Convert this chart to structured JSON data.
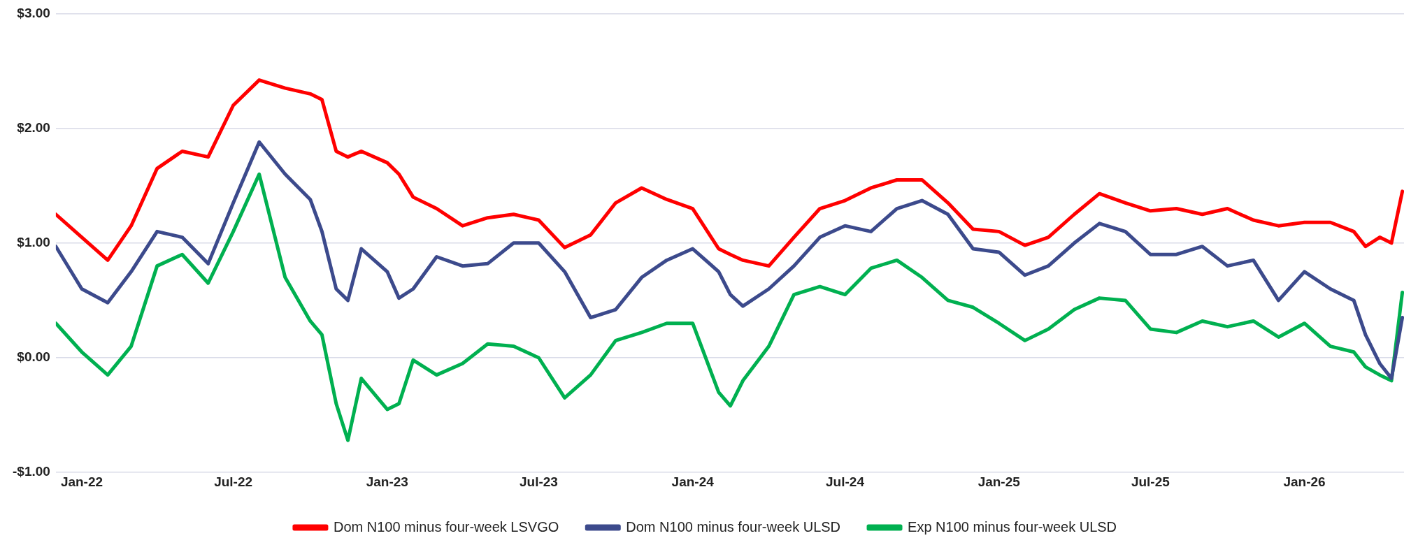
{
  "chart_data": {
    "type": "line",
    "x": [
      "2021-12-01",
      "2022-01-01",
      "2022-02-01",
      "2022-03-01",
      "2022-04-01",
      "2022-05-01",
      "2022-06-01",
      "2022-07-01",
      "2022-08-01",
      "2022-09-01",
      "2022-10-01",
      "2022-10-15",
      "2022-11-01",
      "2022-11-15",
      "2022-12-01",
      "2023-01-01",
      "2023-01-15",
      "2023-02-01",
      "2023-03-01",
      "2023-04-01",
      "2023-05-01",
      "2023-06-01",
      "2023-07-01",
      "2023-08-01",
      "2023-09-01",
      "2023-10-01",
      "2023-11-01",
      "2023-12-01",
      "2024-01-01",
      "2024-02-01",
      "2024-02-15",
      "2024-03-01",
      "2024-04-01",
      "2024-05-01",
      "2024-06-01",
      "2024-07-01",
      "2024-08-01",
      "2024-09-01",
      "2024-10-01",
      "2024-11-01",
      "2024-12-01",
      "2025-01-01",
      "2025-02-01",
      "2025-03-01",
      "2025-04-01",
      "2025-05-01",
      "2025-06-01",
      "2025-07-01",
      "2025-08-01",
      "2025-09-01",
      "2025-10-01",
      "2025-11-01",
      "2025-12-01",
      "2026-01-01",
      "2026-02-01",
      "2026-03-01",
      "2026-03-15",
      "2026-04-01",
      "2026-04-15",
      "2026-04-28"
    ],
    "series": [
      {
        "name": "Dom N100 minus four-week LSVGO",
        "color": "#ff0000",
        "values": [
          1.25,
          1.05,
          0.85,
          1.15,
          1.65,
          1.8,
          1.75,
          2.2,
          2.42,
          2.35,
          2.3,
          2.25,
          1.8,
          1.75,
          1.8,
          1.7,
          1.6,
          1.4,
          1.3,
          1.15,
          1.22,
          1.25,
          1.2,
          0.96,
          1.07,
          1.35,
          1.48,
          1.38,
          1.3,
          0.95,
          0.9,
          0.85,
          0.8,
          1.05,
          1.3,
          1.37,
          1.48,
          1.55,
          1.55,
          1.35,
          1.12,
          1.1,
          0.98,
          1.05,
          1.25,
          1.43,
          1.35,
          1.28,
          1.3,
          1.25,
          1.3,
          1.2,
          1.15,
          1.18,
          1.18,
          1.1,
          0.97,
          1.05,
          1.0,
          1.45
        ]
      },
      {
        "name": "Dom N100 minus four-week ULSD",
        "color": "#3c4a8c",
        "values": [
          0.97,
          0.6,
          0.48,
          0.75,
          1.1,
          1.05,
          0.82,
          1.35,
          1.88,
          1.6,
          1.38,
          1.1,
          0.6,
          0.5,
          0.95,
          0.75,
          0.52,
          0.6,
          0.88,
          0.8,
          0.82,
          1.0,
          1.0,
          0.75,
          0.35,
          0.42,
          0.7,
          0.85,
          0.95,
          0.75,
          0.55,
          0.45,
          0.6,
          0.8,
          1.05,
          1.15,
          1.1,
          1.3,
          1.37,
          1.25,
          0.95,
          0.92,
          0.72,
          0.8,
          1.0,
          1.17,
          1.1,
          0.9,
          0.9,
          0.97,
          0.8,
          0.85,
          0.5,
          0.75,
          0.6,
          0.5,
          0.2,
          -0.05,
          -0.18,
          0.35
        ]
      },
      {
        "name": "Exp N100 minus four-week ULSD",
        "color": "#00b050",
        "values": [
          0.3,
          0.05,
          -0.15,
          0.1,
          0.8,
          0.9,
          0.65,
          1.1,
          1.6,
          0.7,
          0.32,
          0.2,
          -0.4,
          -0.72,
          -0.18,
          -0.45,
          -0.4,
          -0.02,
          -0.15,
          -0.05,
          0.12,
          0.1,
          0.0,
          -0.35,
          -0.15,
          0.15,
          0.22,
          0.3,
          0.3,
          -0.3,
          -0.42,
          -0.2,
          0.1,
          0.55,
          0.62,
          0.55,
          0.78,
          0.85,
          0.7,
          0.5,
          0.44,
          0.3,
          0.15,
          0.25,
          0.42,
          0.52,
          0.5,
          0.25,
          0.22,
          0.32,
          0.27,
          0.32,
          0.18,
          0.3,
          0.1,
          0.05,
          -0.08,
          -0.15,
          -0.2,
          0.57
        ]
      }
    ],
    "xlim": [
      "2021-12-01",
      "2026-04-30"
    ],
    "xticks": [
      {
        "value": "2022-01-01",
        "label": "Jan-22"
      },
      {
        "value": "2022-07-01",
        "label": "Jul-22"
      },
      {
        "value": "2023-01-01",
        "label": "Jan-23"
      },
      {
        "value": "2023-07-01",
        "label": "Jul-23"
      },
      {
        "value": "2024-01-01",
        "label": "Jan-24"
      },
      {
        "value": "2024-07-01",
        "label": "Jul-24"
      },
      {
        "value": "2025-01-01",
        "label": "Jan-25"
      },
      {
        "value": "2025-07-01",
        "label": "Jul-25"
      },
      {
        "value": "2026-01-01",
        "label": "Jan-26"
      }
    ],
    "ylim": [
      -1,
      3
    ],
    "yticks": [
      {
        "value": -1,
        "label": "-$1.00"
      },
      {
        "value": 0,
        "label": "$0.00"
      },
      {
        "value": 1,
        "label": "$1.00"
      },
      {
        "value": 2,
        "label": "$2.00"
      },
      {
        "value": 3,
        "label": "$3.00"
      }
    ],
    "grid": "y",
    "legend": "bottom",
    "marker": "none",
    "line_style": "solid"
  }
}
